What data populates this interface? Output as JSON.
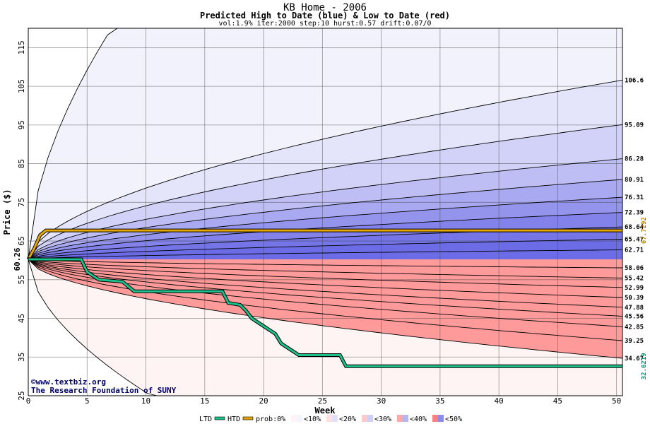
{
  "chart_data": {
    "type": "area",
    "title": "KB Home - 2006",
    "subtitle": "Predicted High to Date (blue) &  Low to Date (red)",
    "params": "vol:1.9% iter:2000 step:10 hurst:0.57 drift:0.07/0",
    "xlabel": "Week",
    "ylabel": "Price ($)",
    "xlim": [
      0,
      50.5
    ],
    "ylim": [
      25,
      120
    ],
    "x_ticks": [
      "0",
      "5",
      "10",
      "15",
      "20",
      "25",
      "30",
      "35",
      "40",
      "45",
      "50"
    ],
    "y_ticks": [
      "25",
      "35",
      "45",
      "55",
      "65",
      "75",
      "85",
      "95",
      "105",
      "115"
    ],
    "start_price": 60.26,
    "start_label": "60.26",
    "grid": true,
    "high_quantile_ends": [
      {
        "label": "106.6",
        "value": 106.6
      },
      {
        "label": "95.09",
        "value": 95.09
      },
      {
        "label": "86.28",
        "value": 86.28
      },
      {
        "label": "80.91",
        "value": 80.91
      },
      {
        "label": "76.31",
        "value": 76.31
      },
      {
        "label": "72.39",
        "value": 72.39
      },
      {
        "label": "68.64",
        "value": 68.64
      },
      {
        "label": "65.47",
        "value": 65.47
      },
      {
        "label": "62.71",
        "value": 62.71
      }
    ],
    "low_quantile_ends": [
      {
        "label": "58.06",
        "value": 58.06
      },
      {
        "label": "55.42",
        "value": 55.42
      },
      {
        "label": "52.99",
        "value": 52.99
      },
      {
        "label": "50.39",
        "value": 50.39
      },
      {
        "label": "47.88",
        "value": 47.88
      },
      {
        "label": "45.56",
        "value": 45.56
      },
      {
        "label": "42.85",
        "value": 42.85
      },
      {
        "label": "39.25",
        "value": 39.25
      },
      {
        "label": "34.67",
        "value": 34.67
      }
    ],
    "htd_series": {
      "label": "67.7292",
      "value": 67.7292,
      "color": "#e6a700",
      "x": [
        0,
        0.5,
        1.0,
        1.5,
        50.5
      ],
      "y": [
        60.26,
        63.0,
        66.5,
        67.7292,
        67.7292
      ]
    },
    "ltd_series": {
      "label": "32.6219",
      "value": 32.6219,
      "color": "#1dbf8a",
      "x": [
        0,
        4.5,
        5,
        6,
        8,
        9,
        16.5,
        17,
        18,
        18.5,
        19,
        19.5,
        20,
        21,
        21.5,
        22,
        23,
        26.5,
        27,
        50.5
      ],
      "y": [
        60.26,
        60.26,
        57,
        55,
        54.5,
        52,
        52,
        49,
        48.5,
        47,
        45,
        44,
        43,
        41,
        38.5,
        37.5,
        35.5,
        35.5,
        32.6219,
        32.6219
      ]
    },
    "colors": {
      "blue_bands": [
        "#f2f2fd",
        "#e4e4fb",
        "#d2d2f8",
        "#bebef5",
        "#a9a9f1",
        "#9494ed",
        "#8282ea",
        "#7575e8",
        "#6c6ce6"
      ],
      "red_bands": [
        "#ff7878",
        "#ff8686",
        "#ff9696",
        "#ffa8a8",
        "#ffbaba",
        "#ffcccc",
        "#ffdcdc",
        "#ffeaea",
        "#fff4f4"
      ]
    },
    "legend": {
      "ltd": "LTD",
      "htd": "HTD",
      "prob": "prob:0%",
      "items": [
        "<10%",
        "<20%",
        "<30%",
        "<40%",
        "<50%"
      ]
    }
  },
  "credit": {
    "line1": "©www.textbiz.org",
    "line2": "The Research Foundation of SUNY"
  }
}
